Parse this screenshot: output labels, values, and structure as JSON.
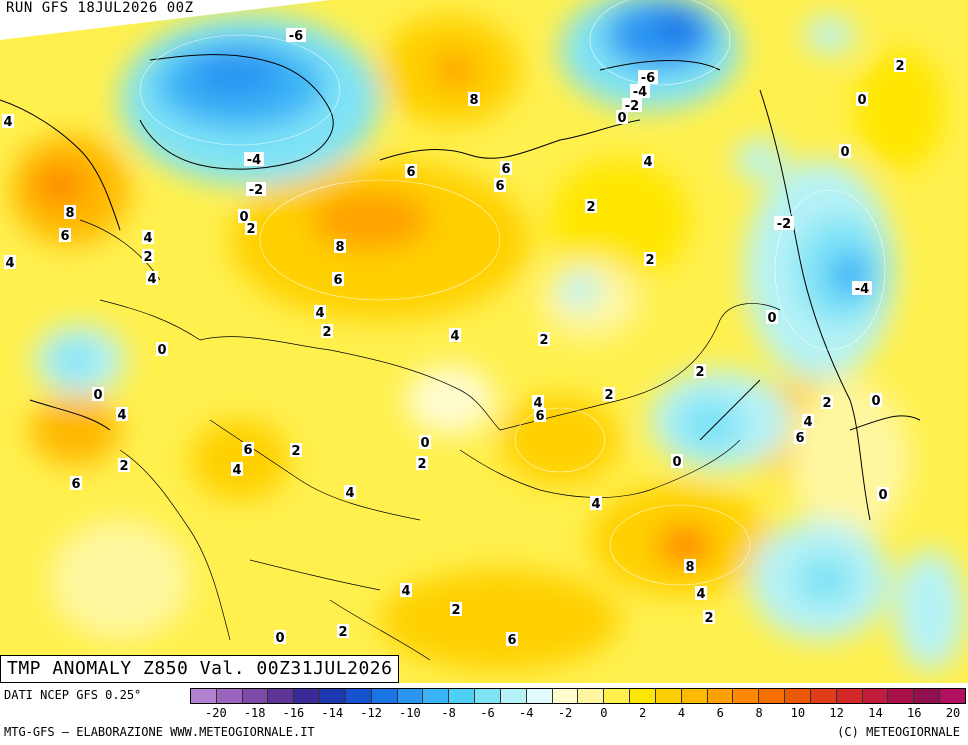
{
  "header": {
    "run_label": "RUN GFS 18JUL2026 00Z"
  },
  "map": {
    "title": "TMP ANOMALY Z850 Val. 00Z31JUL2026",
    "contour_labels": [
      {
        "text": "-6"
      },
      {
        "text": "-6"
      },
      {
        "text": "-4"
      },
      {
        "text": "-2"
      },
      {
        "text": "0"
      },
      {
        "text": "2"
      },
      {
        "text": "0"
      },
      {
        "text": "8"
      },
      {
        "text": "-4"
      },
      {
        "text": "-2"
      },
      {
        "text": "0"
      },
      {
        "text": "2"
      },
      {
        "text": "4"
      },
      {
        "text": "8"
      },
      {
        "text": "6"
      },
      {
        "text": "4"
      },
      {
        "text": "4"
      },
      {
        "text": "2"
      },
      {
        "text": "4"
      },
      {
        "text": "6"
      },
      {
        "text": "6"
      },
      {
        "text": "6"
      },
      {
        "text": "4"
      },
      {
        "text": "2"
      },
      {
        "text": "2"
      },
      {
        "text": "0"
      },
      {
        "text": "-2"
      },
      {
        "text": "8"
      },
      {
        "text": "6"
      },
      {
        "text": "-4"
      },
      {
        "text": "4"
      },
      {
        "text": "2"
      },
      {
        "text": "0"
      },
      {
        "text": "4"
      },
      {
        "text": "2"
      },
      {
        "text": "0"
      },
      {
        "text": "2"
      },
      {
        "text": "0"
      },
      {
        "text": "4"
      },
      {
        "text": "6"
      },
      {
        "text": "2"
      },
      {
        "text": "2"
      },
      {
        "text": "0"
      },
      {
        "text": "6"
      },
      {
        "text": "2"
      },
      {
        "text": "4"
      },
      {
        "text": "0"
      },
      {
        "text": "4"
      },
      {
        "text": "6"
      },
      {
        "text": "2"
      },
      {
        "text": "0"
      },
      {
        "text": "4"
      },
      {
        "text": "6"
      },
      {
        "text": "4"
      },
      {
        "text": "2"
      },
      {
        "text": "0"
      },
      {
        "text": "8"
      },
      {
        "text": "4"
      },
      {
        "text": "2"
      },
      {
        "text": "4"
      },
      {
        "text": "2"
      },
      {
        "text": "6"
      },
      {
        "text": "0"
      },
      {
        "text": "2"
      },
      {
        "text": "4"
      }
    ]
  },
  "legend": {
    "source": "DATI NCEP GFS 0.25°",
    "ticks": [
      "-20",
      "-18",
      "-16",
      "-14",
      "-12",
      "-10",
      "-8",
      "-6",
      "-4",
      "-2",
      "0",
      "2",
      "4",
      "6",
      "8",
      "10",
      "12",
      "14",
      "16",
      "20"
    ],
    "colors": [
      "#b482d2",
      "#9a64be",
      "#7e4aa8",
      "#5e3596",
      "#3a2a98",
      "#1c38b0",
      "#1452d0",
      "#1a74e6",
      "#2a96f2",
      "#3ab4f6",
      "#4ecff6",
      "#7fe3f6",
      "#b6f2f6",
      "#e2fafc",
      "#fffccf",
      "#fff7a0",
      "#fff04e",
      "#ffe600",
      "#ffd000",
      "#ffb800",
      "#ffa100",
      "#ff8800",
      "#f56e00",
      "#ea5a00",
      "#e03c18",
      "#d22828",
      "#c01c3c",
      "#a8104a",
      "#921050",
      "#b0105e"
    ]
  },
  "footer": {
    "left": "MTG-GFS — ELABORAZIONE WWW.METEOGIORNALE.IT",
    "right": "(C) METEOGIORNALE"
  }
}
